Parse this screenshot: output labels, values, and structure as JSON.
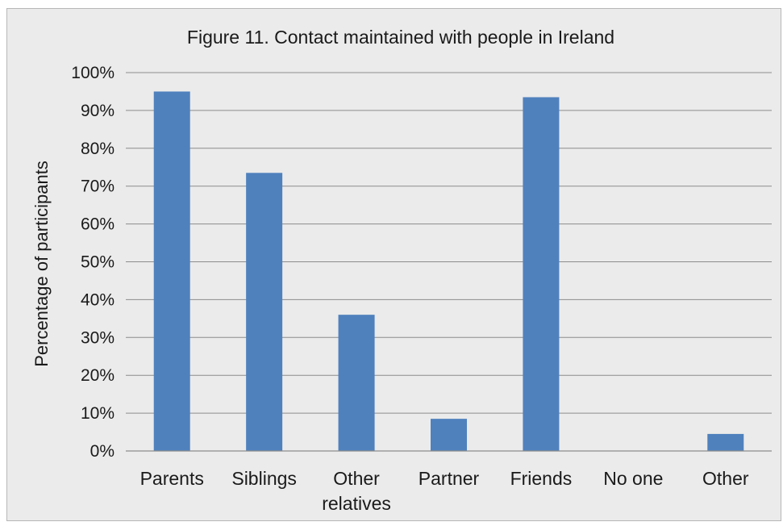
{
  "chart_data": {
    "type": "bar",
    "title": "Figure 11. Contact maintained with people in Ireland",
    "xlabel": "",
    "ylabel": "Percentage of participants",
    "ylim": [
      0,
      100
    ],
    "yticks": [
      "0%",
      "10%",
      "20%",
      "30%",
      "40%",
      "50%",
      "60%",
      "70%",
      "80%",
      "90%",
      "100%"
    ],
    "categories": [
      [
        "Parents"
      ],
      [
        "Siblings"
      ],
      [
        "Other",
        "relatives"
      ],
      [
        "Partner"
      ],
      [
        "Friends"
      ],
      [
        "No one"
      ],
      [
        "Other"
      ]
    ],
    "values": [
      95,
      73.5,
      36,
      8.5,
      93.5,
      0,
      4.5
    ],
    "bar_color": "#4f81bd",
    "grid": true,
    "legend": "none"
  }
}
